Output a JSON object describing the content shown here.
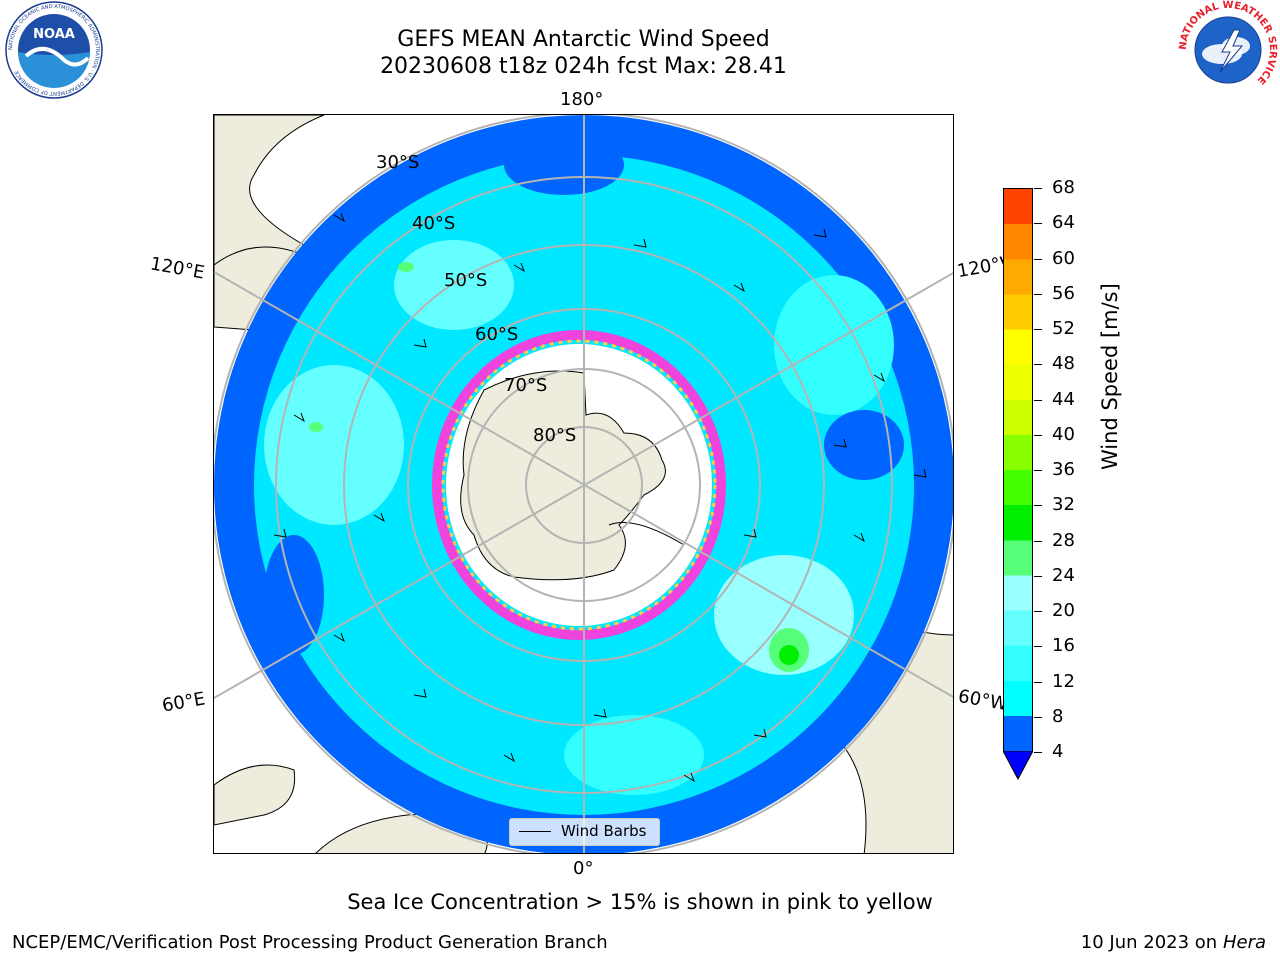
{
  "title": {
    "line1": "GEFS MEAN Antarctic Wind Speed",
    "line2": "20230608 t18z 024h fcst   Max: 28.41"
  },
  "map": {
    "projection": "south-polar-stereographic",
    "longitude_labels": {
      "top": "180°",
      "upper_left": "120°E",
      "upper_right": "120°W",
      "lower_left": "60°E",
      "lower_right": "60°W",
      "bottom": "0°"
    },
    "latitude_labels": [
      "30°S",
      "40°S",
      "50°S",
      "60°S",
      "70°S",
      "80°S"
    ],
    "legend": {
      "label": "Wind Barbs"
    },
    "colors": {
      "land": "#eeecdc",
      "sea_ice": "#ffffff",
      "ice_edge_pink": "#ee44dd",
      "ice_edge_yellow": "#ffcc44"
    }
  },
  "colorbar": {
    "label": "Wind Speed [m/s]",
    "ticks": [
      "4",
      "8",
      "12",
      "16",
      "20",
      "24",
      "28",
      "32",
      "36",
      "40",
      "44",
      "48",
      "52",
      "56",
      "60",
      "64",
      "68"
    ],
    "colors": [
      "#0064ff",
      "#00ffff",
      "#33ffff",
      "#66ffff",
      "#99ffff",
      "#55ff77",
      "#00ee00",
      "#44ff00",
      "#88ff00",
      "#ccff00",
      "#eeff00",
      "#ffff00",
      "#ffcc00",
      "#ffaa00",
      "#ff8800",
      "#ff4400",
      "#ff0000"
    ],
    "under_color": "#0000ff"
  },
  "footer": {
    "note": "Sea Ice Concentration > 15% is shown in pink to yellow",
    "credit": "NCEP/EMC/Verification Post Processing Product Generation Branch",
    "date": "10 Jun 2023 on",
    "machine": "Hera"
  },
  "logos": {
    "left": {
      "text": "NOAA",
      "ring_text": "NATIONAL OCEANIC AND ATMOSPHERIC ADMINISTRATION · U.S. DEPARTMENT OF COMMERCE"
    },
    "right": {
      "ring_text": "NATIONAL WEATHER SERVICE"
    }
  }
}
